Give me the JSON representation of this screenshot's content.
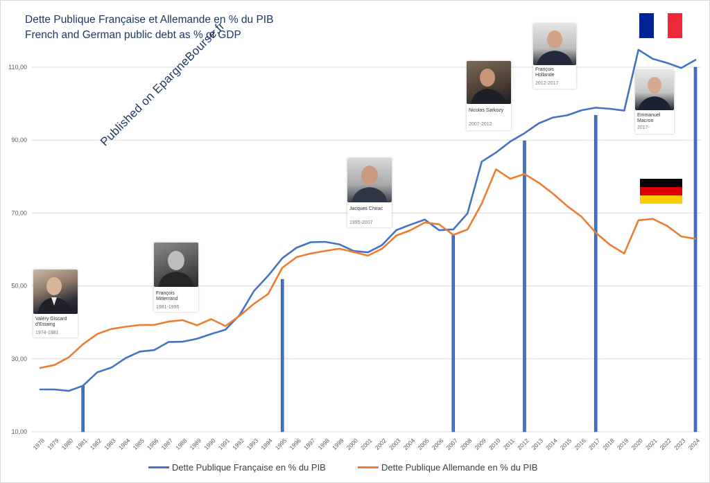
{
  "titles": {
    "line1": "Dette Publique Française et Allemande en % du PIB",
    "line2": "French and German public debt as % of GDP"
  },
  "watermark": "Published on EpargneBourse.fr",
  "presidents": [
    {
      "name": "Valéry Giscard d'Estaing",
      "years": "1974-1981"
    },
    {
      "name": "François Mitterrand",
      "years": "1981-1995"
    },
    {
      "name": "Jacques Chirac",
      "years": "1995-2007"
    },
    {
      "name": "Nicolas Sarkozy",
      "years": "2007-2012"
    },
    {
      "name": "François Hollande",
      "years": "2012-2017"
    },
    {
      "name": "Emmanuel Macron",
      "years": "2017-"
    }
  ],
  "flags": {
    "france": [
      "#002395",
      "#ffffff",
      "#ed2939"
    ],
    "germany": [
      "#000000",
      "#dd0000",
      "#ffce00"
    ]
  },
  "chart_data": {
    "type": "line",
    "title": "Dette Publique Française et Allemande en % du PIB",
    "subtitle": "French and German public debt as % of GDP",
    "xlabel": "",
    "ylabel": "",
    "ylim": [
      10,
      120
    ],
    "yticks": [
      "10,00",
      "30,00",
      "50,00",
      "70,00",
      "90,00",
      "110,00"
    ],
    "ytick_values": [
      10,
      30,
      50,
      70,
      90,
      110
    ],
    "grid": true,
    "legend_position": "bottom",
    "x": [
      "1978",
      "1979",
      "1980",
      "1981",
      "1982",
      "1983",
      "1984",
      "1985",
      "1986",
      "1987",
      "1988",
      "1989",
      "1990",
      "1991",
      "1992",
      "1993",
      "1994",
      "1995",
      "1996",
      "1997",
      "1998",
      "1999",
      "2000",
      "2001",
      "2002",
      "2003",
      "2004",
      "2005",
      "2006",
      "2007",
      "2008",
      "2009",
      "2010",
      "2011",
      "2012",
      "2013",
      "2014",
      "2015",
      "2016",
      "2017",
      "2018",
      "2019",
      "2020",
      "2021",
      "2022",
      "2023",
      "2024"
    ],
    "series": [
      {
        "name": "Dette Publique Française en % du PIB",
        "color": "#4472c4",
        "values": [
          21.6,
          21.6,
          21.2,
          22.6,
          26.3,
          27.6,
          30.2,
          32.0,
          32.4,
          34.6,
          34.7,
          35.5,
          36.8,
          38.0,
          42.0,
          48.6,
          52.8,
          57.6,
          60.5,
          62.0,
          62.1,
          61.4,
          59.6,
          59.2,
          61.2,
          65.3,
          66.8,
          68.2,
          65.3,
          65.5,
          69.9,
          84.1,
          86.6,
          89.6,
          91.9,
          94.6,
          96.2,
          96.8,
          98.2,
          98.9,
          98.6,
          98.1,
          114.8,
          112.3,
          111.2,
          109.8,
          112.0
        ]
      },
      {
        "name": "Dette Publique Allemande en % du PIB",
        "color": "#ed7d31",
        "values": [
          27.5,
          28.3,
          30.4,
          34.0,
          36.8,
          38.2,
          38.8,
          39.3,
          39.3,
          40.2,
          40.6,
          39.2,
          40.9,
          39.0,
          41.8,
          45.1,
          47.8,
          55.0,
          57.9,
          58.9,
          59.6,
          60.2,
          59.3,
          58.3,
          60.2,
          63.8,
          65.3,
          67.4,
          66.9,
          64.0,
          65.5,
          72.6,
          82.0,
          79.4,
          80.7,
          78.3,
          75.3,
          71.9,
          69.0,
          64.6,
          61.3,
          58.9,
          68.0,
          68.4,
          66.5,
          63.6,
          62.9
        ]
      }
    ],
    "mandate_bars": [
      {
        "year": "1981",
        "value": 22.6
      },
      {
        "year": "1995",
        "value": 51.8
      },
      {
        "year": "2007",
        "value": 63.9
      },
      {
        "year": "2012",
        "value": 89.8
      },
      {
        "year": "2017",
        "value": 96.8
      },
      {
        "year": "2024",
        "value": 110.0
      }
    ],
    "bar_color": "#4472c4"
  }
}
